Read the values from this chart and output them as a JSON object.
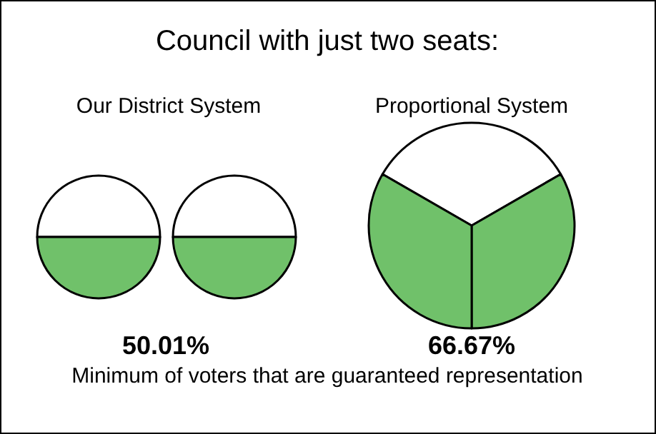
{
  "chart_data": [
    {
      "type": "other",
      "title": "Council with just two seats:",
      "annotations": [
        "Minimum of voters that are guaranteed representation"
      ]
    },
    {
      "type": "pie",
      "title": "Our District System",
      "categories": [
        null,
        null
      ],
      "values": [
        50,
        50
      ],
      "colors": [
        "#ffffff",
        "#70c16a"
      ],
      "annotations": [
        "50.01%"
      ]
    },
    {
      "type": "pie",
      "categories": [
        null,
        null
      ],
      "values": [
        50,
        50
      ],
      "colors": [
        "#ffffff",
        "#70c16a"
      ]
    },
    {
      "type": "pie",
      "title": "Proportional System",
      "categories": [
        null,
        null,
        null
      ],
      "values": [
        33.33,
        33.33,
        33.34
      ],
      "colors": [
        "#ffffff",
        "#70c16a",
        "#70c16a"
      ],
      "annotations": [
        "66.67%"
      ]
    }
  ]
}
